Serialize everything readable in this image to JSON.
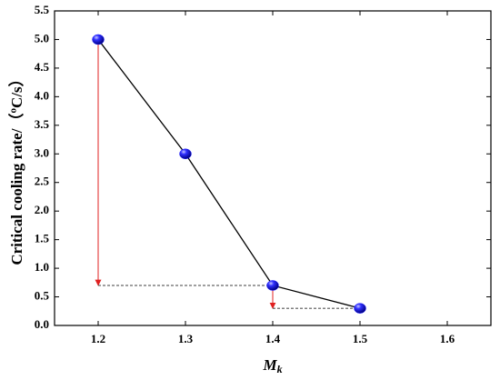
{
  "chart_data": {
    "type": "line",
    "x_label": {
      "text": "M",
      "subscript": "k"
    },
    "y_label": "Critical cooling rate/（ºC/s）",
    "x": [
      1.2,
      1.3,
      1.4,
      1.5
    ],
    "series": [
      {
        "color": "#1a1aff",
        "values": [
          5.0,
          3.0,
          0.7,
          0.3
        ]
      }
    ],
    "xlim": [
      1.15,
      1.65
    ],
    "xticks": [
      1.2,
      1.3,
      1.4,
      1.5,
      1.6
    ],
    "ylim": [
      0,
      5.5
    ],
    "yticks": [
      {
        "value": 0,
        "label": "0.0"
      },
      0.5,
      {
        "value": 1,
        "label": "1.0"
      },
      1.5,
      {
        "value": 2,
        "label": "2.0"
      },
      2.5,
      {
        "value": 3,
        "label": "3.0"
      },
      3.5,
      {
        "value": 4,
        "label": "4.0"
      },
      4.5,
      {
        "value": 5,
        "label": "5.0"
      },
      5.5
    ],
    "line_color": "#000000",
    "arrow_color": "#e02020"
  }
}
